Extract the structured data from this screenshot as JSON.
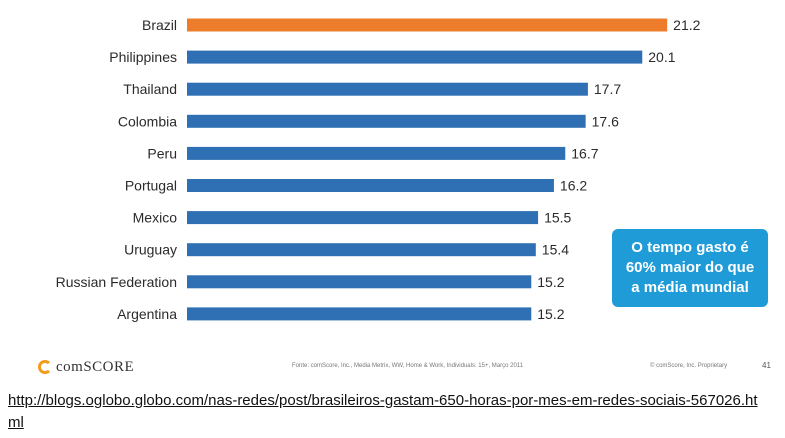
{
  "chart_data": {
    "type": "bar",
    "orientation": "horizontal",
    "categories": [
      "Brazil",
      "Philippines",
      "Thailand",
      "Colombia",
      "Peru",
      "Portugal",
      "Mexico",
      "Uruguay",
      "Russian Federation",
      "Argentina"
    ],
    "values": [
      21.2,
      20.1,
      17.7,
      17.6,
      16.7,
      16.2,
      15.5,
      15.4,
      15.2,
      15.2
    ],
    "value_labels": [
      "21.2",
      "20.1",
      "17.7",
      "17.6",
      "16.7",
      "16.2",
      "15.5",
      "15.4",
      "15.2",
      "15.2"
    ],
    "highlight_category": "Brazil",
    "colors": {
      "bar": "#2f6fb3",
      "highlight": "#ee7d2b"
    },
    "grid": false,
    "legend": "none"
  },
  "callout": {
    "lines": [
      "O tempo gasto é",
      "60% maior do que",
      "a média mundial"
    ],
    "color": "#1f9bd7"
  },
  "footer": {
    "logo_text": "comSCORE",
    "logo_icon": "comscore-logo-icon",
    "source_note": "Fonte: comScore, Inc., Media Metrix, WW, Home & Work, Individuals: 15+, Março 2011",
    "copyright_note": "© comScore, Inc. Proprietary",
    "page_number": "41"
  },
  "link": {
    "url_text": "http://blogs.oglobo.globo.com/nas-redes/post/brasileiros-gastam-650-horas-por-mes-em-redes-sociais-567026.html"
  }
}
